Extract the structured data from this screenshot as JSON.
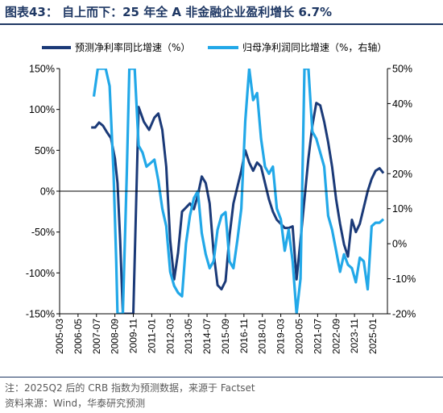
{
  "title": "图表43：  自上而下：25 年全 A 非金融企业盈利增长 6.7%",
  "note": "注：2025Q2 后的 CRB 指数为预测数据，来源于 Factset",
  "source": "资料来源：Wind，华泰研究预测",
  "colors": {
    "series1": "#1b3a78",
    "series2": "#22a8e8",
    "accent": "#1f3864"
  },
  "chart_data": {
    "type": "line",
    "legend_position": "top",
    "grid": false,
    "y_left": {
      "min": -150,
      "max": 150,
      "ticks": [
        "150%",
        "100%",
        "50%",
        "0%",
        "-50%",
        "-100%",
        "-150%"
      ]
    },
    "y_right": {
      "min": -20,
      "max": 50,
      "ticks": [
        "50%",
        "40%",
        "30%",
        "20%",
        "10%",
        "0%",
        "-10%",
        "-20%"
      ]
    },
    "x_ticks": [
      "2005-03",
      "2006-05",
      "2007-07",
      "2008-09",
      "2009-11",
      "2011-01",
      "2012-03",
      "2013-05",
      "2014-07",
      "2015-09",
      "2016-11",
      "2018-01",
      "2019-03",
      "2020-05",
      "2021-07",
      "2022-09",
      "2023-11",
      "2025-01"
    ],
    "x_range": [
      "2005-03",
      "2025-12"
    ],
    "series": [
      {
        "name": "预测净利率同比增速（%）",
        "axis": "left",
        "points": [
          [
            "2007-03",
            78
          ],
          [
            "2007-06",
            78
          ],
          [
            "2007-09",
            84
          ],
          [
            "2007-12",
            80
          ],
          [
            "2008-03",
            72
          ],
          [
            "2008-06",
            65
          ],
          [
            "2008-09",
            40
          ],
          [
            "2008-11",
            10
          ],
          [
            "2009-01",
            -60
          ],
          [
            "2009-03",
            -150
          ],
          [
            "2009-11",
            -150
          ],
          [
            "2010-03",
            103
          ],
          [
            "2010-07",
            85
          ],
          [
            "2010-11",
            75
          ],
          [
            "2011-03",
            90
          ],
          [
            "2011-06",
            95
          ],
          [
            "2011-09",
            75
          ],
          [
            "2011-12",
            30
          ],
          [
            "2012-03",
            -60
          ],
          [
            "2012-06",
            -108
          ],
          [
            "2012-09",
            -75
          ],
          [
            "2012-12",
            -25
          ],
          [
            "2013-03",
            -20
          ],
          [
            "2013-06",
            -15
          ],
          [
            "2013-09",
            -22
          ],
          [
            "2013-12",
            -5
          ],
          [
            "2014-03",
            18
          ],
          [
            "2014-06",
            10
          ],
          [
            "2014-09",
            -15
          ],
          [
            "2014-12",
            -75
          ],
          [
            "2015-03",
            -115
          ],
          [
            "2015-06",
            -120
          ],
          [
            "2015-09",
            -110
          ],
          [
            "2015-12",
            -55
          ],
          [
            "2016-03",
            -15
          ],
          [
            "2016-06",
            5
          ],
          [
            "2016-09",
            25
          ],
          [
            "2016-12",
            50
          ],
          [
            "2017-03",
            35
          ],
          [
            "2017-06",
            25
          ],
          [
            "2017-09",
            35
          ],
          [
            "2017-12",
            30
          ],
          [
            "2018-03",
            10
          ],
          [
            "2018-06",
            -10
          ],
          [
            "2018-09",
            -25
          ],
          [
            "2018-12",
            -35
          ],
          [
            "2019-03",
            -40
          ],
          [
            "2019-06",
            -45
          ],
          [
            "2019-09",
            -45
          ],
          [
            "2019-12",
            -43
          ],
          [
            "2020-03",
            -108
          ],
          [
            "2020-06",
            -60
          ],
          [
            "2020-09",
            -10
          ],
          [
            "2020-12",
            40
          ],
          [
            "2021-03",
            80
          ],
          [
            "2021-06",
            108
          ],
          [
            "2021-09",
            105
          ],
          [
            "2021-12",
            85
          ],
          [
            "2022-03",
            60
          ],
          [
            "2022-06",
            30
          ],
          [
            "2022-09",
            -10
          ],
          [
            "2022-12",
            -40
          ],
          [
            "2023-03",
            -65
          ],
          [
            "2023-06",
            -80
          ],
          [
            "2023-09",
            -35
          ],
          [
            "2023-12",
            -50
          ],
          [
            "2024-03",
            -40
          ],
          [
            "2024-06",
            -20
          ],
          [
            "2024-09",
            0
          ],
          [
            "2024-12",
            15
          ],
          [
            "2025-03",
            25
          ],
          [
            "2025-06",
            28
          ],
          [
            "2025-09",
            22
          ]
        ]
      },
      {
        "name": "归母净利润同比增速（%，右轴）",
        "axis": "right",
        "points": [
          [
            "2007-05",
            42
          ],
          [
            "2007-08",
            50
          ],
          [
            "2007-10",
            50
          ],
          [
            "2008-02",
            50
          ],
          [
            "2008-05",
            45
          ],
          [
            "2008-08",
            20
          ],
          [
            "2008-10",
            -5
          ],
          [
            "2008-11",
            -20
          ],
          [
            "2009-03",
            -20
          ],
          [
            "2009-06",
            20
          ],
          [
            "2009-08",
            50
          ],
          [
            "2009-12",
            50
          ],
          [
            "2010-03",
            28
          ],
          [
            "2010-06",
            26
          ],
          [
            "2010-09",
            22
          ],
          [
            "2010-12",
            23
          ],
          [
            "2011-03",
            24
          ],
          [
            "2011-06",
            18
          ],
          [
            "2011-09",
            10
          ],
          [
            "2011-12",
            5
          ],
          [
            "2012-03",
            -8
          ],
          [
            "2012-06",
            -12
          ],
          [
            "2012-09",
            -14
          ],
          [
            "2012-12",
            -15
          ],
          [
            "2013-03",
            0
          ],
          [
            "2013-06",
            8
          ],
          [
            "2013-09",
            13
          ],
          [
            "2013-12",
            15
          ],
          [
            "2014-03",
            3
          ],
          [
            "2014-06",
            -3
          ],
          [
            "2014-09",
            -7
          ],
          [
            "2014-12",
            -5
          ],
          [
            "2015-03",
            4
          ],
          [
            "2015-06",
            8
          ],
          [
            "2015-09",
            9
          ],
          [
            "2015-12",
            -5
          ],
          [
            "2016-03",
            -7
          ],
          [
            "2016-06",
            1
          ],
          [
            "2016-09",
            10
          ],
          [
            "2016-12",
            35
          ],
          [
            "2017-03",
            50
          ],
          [
            "2017-06",
            41
          ],
          [
            "2017-09",
            43
          ],
          [
            "2017-12",
            30
          ],
          [
            "2018-03",
            22
          ],
          [
            "2018-06",
            20
          ],
          [
            "2018-09",
            22
          ],
          [
            "2018-12",
            10
          ],
          [
            "2019-03",
            7
          ],
          [
            "2019-06",
            -2
          ],
          [
            "2019-09",
            4
          ],
          [
            "2019-12",
            -5
          ],
          [
            "2020-03",
            -20
          ],
          [
            "2020-06",
            -10
          ],
          [
            "2020-09",
            50
          ],
          [
            "2020-12",
            50
          ],
          [
            "2021-03",
            32
          ],
          [
            "2021-06",
            30
          ],
          [
            "2021-09",
            26
          ],
          [
            "2021-12",
            22
          ],
          [
            "2022-03",
            8
          ],
          [
            "2022-06",
            4
          ],
          [
            "2022-09",
            -2
          ],
          [
            "2022-12",
            -8
          ],
          [
            "2023-03",
            -3
          ],
          [
            "2023-06",
            -6
          ],
          [
            "2023-09",
            -7
          ],
          [
            "2023-12",
            -11
          ],
          [
            "2024-03",
            -4
          ],
          [
            "2024-06",
            -5
          ],
          [
            "2024-09",
            -13
          ],
          [
            "2024-12",
            5
          ],
          [
            "2025-03",
            6
          ],
          [
            "2025-06",
            6
          ],
          [
            "2025-09",
            7
          ]
        ]
      }
    ]
  }
}
